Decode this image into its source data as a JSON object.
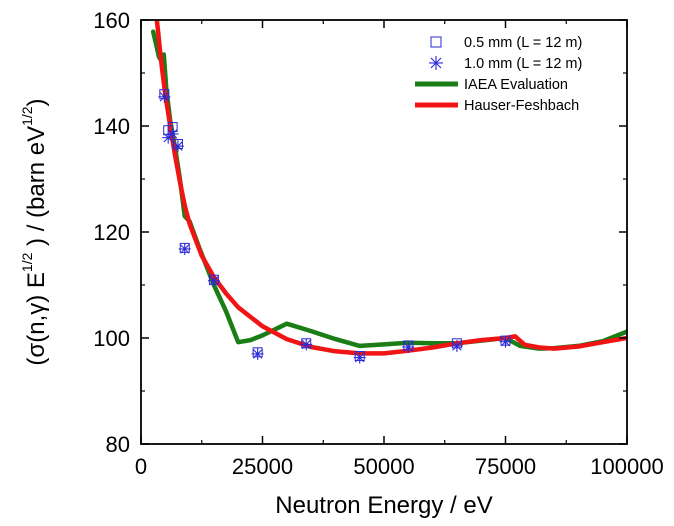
{
  "chart_data": {
    "type": "scatter",
    "title": "",
    "xlabel": "Neutron Energy / eV",
    "ylabel_parts": {
      "a": "(σ(n,γ)  E",
      "a_sup": "1/2",
      "b": " ) / (barn eV",
      "b_sup": "1/2",
      "c": ")"
    },
    "xlim": [
      0,
      100000
    ],
    "ylim": [
      80,
      160
    ],
    "x_ticks": [
      0,
      25000,
      50000,
      75000,
      100000
    ],
    "x_tick_labels": [
      "0",
      "25000",
      "50000",
      "75000",
      "100000"
    ],
    "y_ticks": [
      80,
      100,
      120,
      140,
      160
    ],
    "y_tick_labels": [
      "80",
      "100",
      "120",
      "140",
      "160"
    ],
    "legend_position": "top-right",
    "colors": {
      "markers": "#2a2ad6",
      "iaea": "#1a7d16",
      "hauser": "#f01414",
      "axis": "#000000"
    },
    "series": [
      {
        "name": "0.5 mm (L = 12 m)",
        "marker": "square",
        "points": [
          [
            4800,
            146.0
          ],
          [
            5600,
            139.2
          ],
          [
            6500,
            139.8
          ],
          [
            7600,
            136.6
          ],
          [
            9000,
            117.0
          ],
          [
            15000,
            111.0
          ],
          [
            24000,
            97.3
          ],
          [
            34000,
            99.0
          ],
          [
            45000,
            96.6
          ],
          [
            55000,
            98.6
          ],
          [
            65000,
            99.0
          ],
          [
            75000,
            99.5
          ]
        ]
      },
      {
        "name": "1.0 mm (L = 12 m)",
        "marker": "asterisk",
        "points": [
          [
            4800,
            145.5
          ],
          [
            5600,
            137.8
          ],
          [
            6500,
            138.5
          ],
          [
            7600,
            136.2
          ],
          [
            9000,
            116.8
          ],
          [
            15000,
            110.8
          ],
          [
            24000,
            97.0
          ],
          [
            34000,
            98.8
          ],
          [
            45000,
            96.3
          ],
          [
            55000,
            98.3
          ],
          [
            65000,
            98.5
          ],
          [
            75000,
            99.3
          ]
        ]
      },
      {
        "name": "IAEA Evaluation",
        "style": "line",
        "points": [
          [
            2500,
            157.8
          ],
          [
            3200,
            155.0
          ],
          [
            3700,
            153.0
          ],
          [
            4300,
            152.2
          ],
          [
            4700,
            153.5
          ],
          [
            5200,
            147.0
          ],
          [
            6000,
            141.0
          ],
          [
            7000,
            136.0
          ],
          [
            8000,
            130.0
          ],
          [
            9000,
            123.0
          ],
          [
            10000,
            122.0
          ],
          [
            12000,
            117.0
          ],
          [
            15000,
            110.0
          ],
          [
            17500,
            105.0
          ],
          [
            20000,
            99.2
          ],
          [
            22500,
            99.6
          ],
          [
            25000,
            100.5
          ],
          [
            30000,
            102.7
          ],
          [
            35000,
            101.3
          ],
          [
            40000,
            99.8
          ],
          [
            45000,
            98.5
          ],
          [
            50000,
            98.8
          ],
          [
            55000,
            99.1
          ],
          [
            60000,
            99.0
          ],
          [
            65000,
            99.0
          ],
          [
            70000,
            99.5
          ],
          [
            75000,
            100.0
          ],
          [
            78000,
            98.5
          ],
          [
            82000,
            98.0
          ],
          [
            85000,
            98.1
          ],
          [
            90000,
            98.5
          ],
          [
            95000,
            99.4
          ],
          [
            100000,
            101.2
          ]
        ]
      },
      {
        "name": "Hauser-Feshbach",
        "style": "line",
        "points": [
          [
            3000,
            162.0
          ],
          [
            3500,
            158.0
          ],
          [
            4000,
            153.5
          ],
          [
            4500,
            149.5
          ],
          [
            5000,
            146.0
          ],
          [
            6000,
            140.0
          ],
          [
            7000,
            134.5
          ],
          [
            8000,
            129.5
          ],
          [
            9000,
            125.0
          ],
          [
            10000,
            121.5
          ],
          [
            12500,
            115.5
          ],
          [
            15000,
            111.5
          ],
          [
            17500,
            108.4
          ],
          [
            20000,
            105.8
          ],
          [
            25000,
            102.2
          ],
          [
            30000,
            99.8
          ],
          [
            35000,
            98.3
          ],
          [
            40000,
            97.5
          ],
          [
            45000,
            97.1
          ],
          [
            50000,
            97.1
          ],
          [
            55000,
            97.6
          ],
          [
            60000,
            98.2
          ],
          [
            65000,
            99.0
          ],
          [
            70000,
            99.6
          ],
          [
            75000,
            100.0
          ],
          [
            77000,
            100.3
          ],
          [
            79000,
            98.7
          ],
          [
            82000,
            98.2
          ],
          [
            85000,
            98.0
          ],
          [
            90000,
            98.4
          ],
          [
            95000,
            99.2
          ],
          [
            100000,
            100.0
          ]
        ]
      }
    ]
  }
}
